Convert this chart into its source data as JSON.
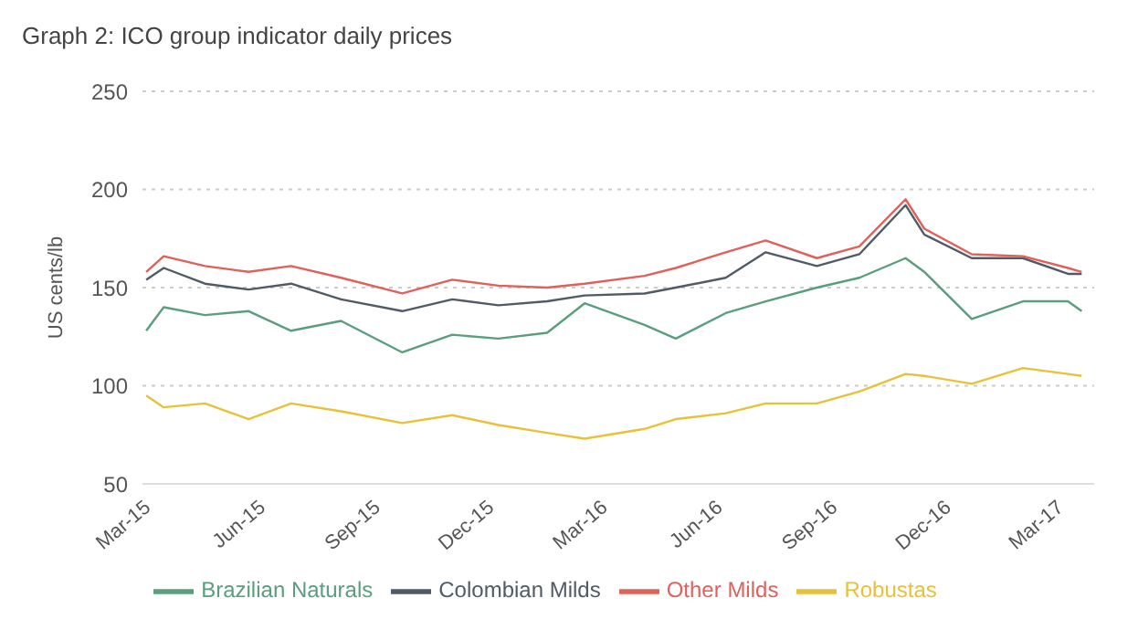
{
  "chart_data": {
    "type": "line",
    "title": "Graph 2: ICO group indicator daily prices",
    "ylabel": "US cents/lb",
    "x": [
      "2015-03-04",
      "2015-03-18",
      "2015-04-20",
      "2015-05-25",
      "2015-06-28",
      "2015-08-07",
      "2015-09-25",
      "2015-11-04",
      "2015-12-11",
      "2016-01-19",
      "2016-02-18",
      "2016-04-06",
      "2016-05-01",
      "2016-06-10",
      "2016-07-12",
      "2016-08-22",
      "2016-09-25",
      "2016-11-01",
      "2016-11-16",
      "2016-12-24",
      "2017-02-03",
      "2017-03-11",
      "2017-03-22"
    ],
    "series": [
      {
        "name": "Colombian Milds",
        "color": "#4f5b66",
        "values": [
          154,
          160,
          152,
          149,
          152,
          144,
          138,
          144,
          141,
          143,
          146,
          147,
          150,
          155,
          168,
          161,
          167,
          192,
          177,
          165,
          165,
          157,
          157
        ]
      },
      {
        "name": "Other Milds",
        "color": "#e0605a",
        "values": [
          158,
          166,
          161,
          158,
          161,
          155,
          147,
          154,
          151,
          150,
          152,
          156,
          160,
          168,
          174,
          165,
          171,
          195,
          180,
          167,
          166,
          160,
          158
        ]
      },
      {
        "name": "Brazilian Naturals",
        "color": "#5a9e7c",
        "values": [
          128,
          140,
          136,
          138,
          128,
          133,
          117,
          126,
          124,
          127,
          142,
          131,
          124,
          137,
          143,
          150,
          155,
          165,
          158,
          134,
          143,
          143,
          138
        ]
      },
      {
        "name": "Robustas",
        "color": "#e8c13a",
        "values": [
          95,
          89,
          91,
          83,
          91,
          87,
          81,
          85,
          80,
          76,
          73,
          78,
          83,
          86,
          91,
          91,
          97,
          106,
          105,
          101,
          109,
          106,
          105
        ]
      }
    ],
    "xlim": [
      "2015-03-01",
      "2017-04-01"
    ],
    "xticks": [
      {
        "value": "2015-03-01",
        "label": "Mar-15"
      },
      {
        "value": "2015-06-01",
        "label": "Jun-15"
      },
      {
        "value": "2015-09-01",
        "label": "Sep-15"
      },
      {
        "value": "2015-12-01",
        "label": "Dec-15"
      },
      {
        "value": "2016-03-01",
        "label": "Mar-16"
      },
      {
        "value": "2016-06-01",
        "label": "Jun-16"
      },
      {
        "value": "2016-09-01",
        "label": "Sep-16"
      },
      {
        "value": "2016-12-01",
        "label": "Dec-16"
      },
      {
        "value": "2017-03-01",
        "label": "Mar-17"
      }
    ],
    "ylim": [
      50,
      250
    ],
    "yticks": [
      50,
      100,
      150,
      200,
      250
    ],
    "grid": "y",
    "legend": "bottom",
    "marker": "none",
    "line_style": "solid"
  }
}
